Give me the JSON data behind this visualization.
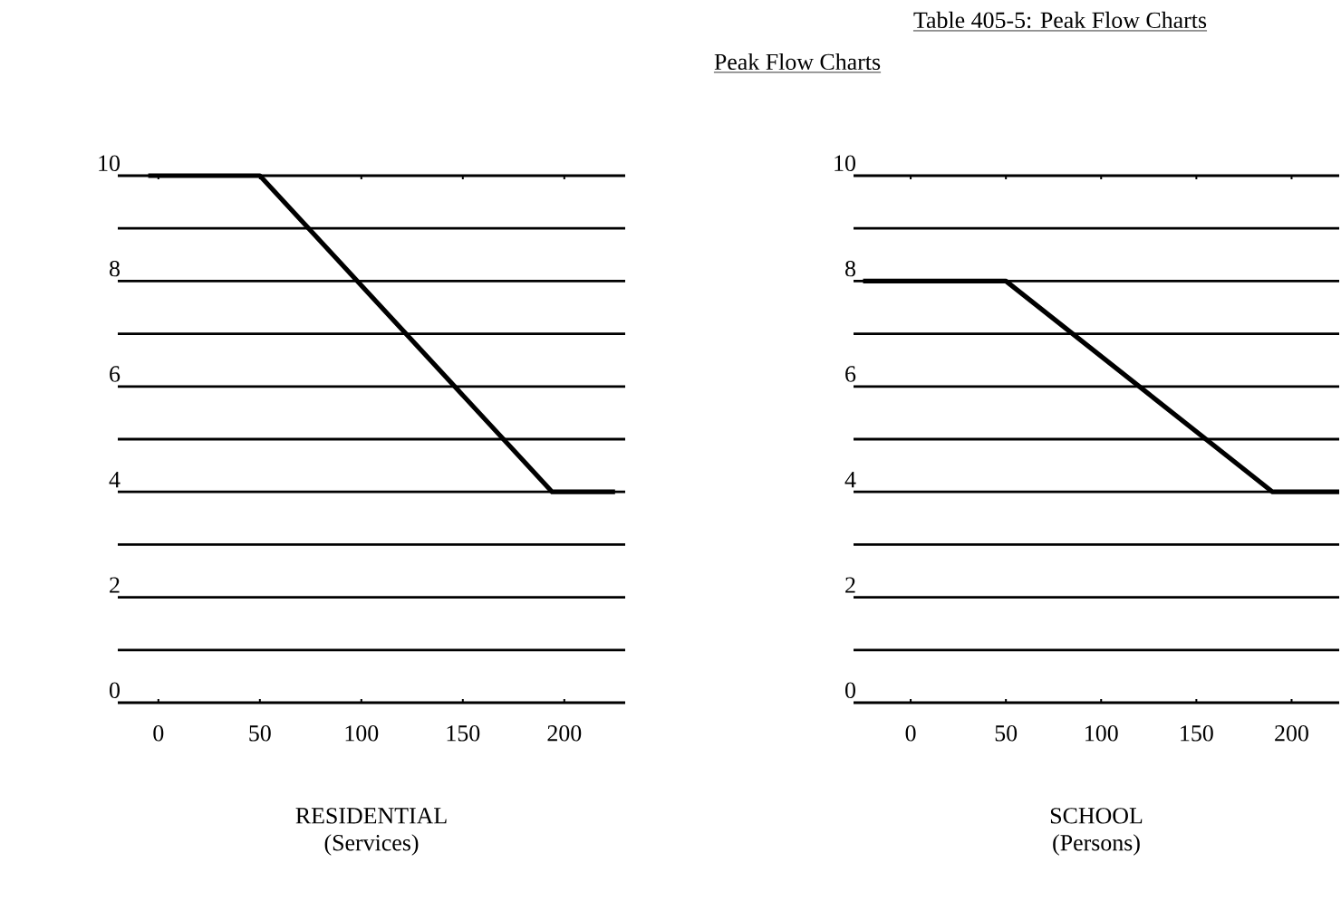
{
  "chart_data": [
    {
      "type": "line",
      "xlabel": "RESIDENTIAL (Services)",
      "x": [
        -5,
        50,
        194,
        225
      ],
      "series": [
        {
          "color": "#000000",
          "values": [
            10,
            10,
            4,
            4
          ]
        }
      ],
      "xlim": [
        -20,
        230
      ],
      "xticks": [
        0,
        50,
        100,
        150,
        200
      ],
      "ylim": [
        0,
        10
      ],
      "yticks": [
        0,
        {
          "value": 1,
          "label": null
        },
        2,
        {
          "value": 3,
          "label": null
        },
        4,
        {
          "value": 5,
          "label": null
        },
        6,
        {
          "value": 7,
          "label": null
        },
        8,
        {
          "value": 9,
          "label": null
        },
        10
      ],
      "grid": "y",
      "marker": "none",
      "line_style": "solid"
    },
    {
      "type": "line",
      "title": "Table 405-5: Peak Flow Charts",
      "subtitle": "Peak Flow Charts",
      "xlabel": "SCHOOL (Persons)",
      "x": [
        -25,
        50,
        190,
        225
      ],
      "series": [
        {
          "color": "#000000",
          "values": [
            8,
            8,
            4,
            4
          ]
        }
      ],
      "xlim": [
        -30,
        225
      ],
      "xticks": [
        0,
        50,
        100,
        150,
        200
      ],
      "ylim": [
        0,
        10
      ],
      "yticks": [
        0,
        {
          "value": 1,
          "label": null
        },
        2,
        {
          "value": 3,
          "label": null
        },
        4,
        {
          "value": 5,
          "label": null
        },
        6,
        {
          "value": 7,
          "label": null
        },
        8,
        {
          "value": 9,
          "label": null
        },
        10
      ],
      "grid": "y",
      "marker": "none",
      "line_style": "solid"
    }
  ]
}
